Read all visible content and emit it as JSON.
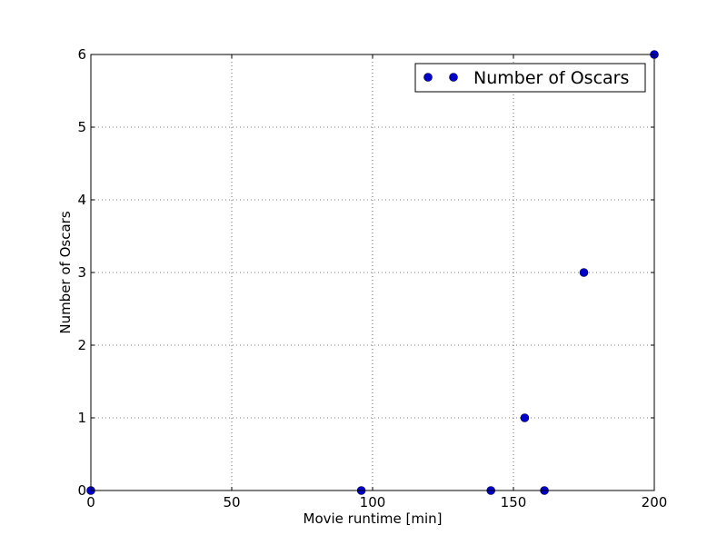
{
  "chart_data": {
    "type": "scatter",
    "title": "",
    "xlabel": "Movie runtime [min]",
    "ylabel": "Number of Oscars",
    "xlim": [
      0,
      200
    ],
    "ylim": [
      0,
      6
    ],
    "x_ticks": [
      "0",
      "50",
      "100",
      "150",
      "200"
    ],
    "y_ticks": [
      "0",
      "1",
      "2",
      "3",
      "4",
      "5",
      "6"
    ],
    "grid": true,
    "legend_position": "top-right",
    "series": [
      {
        "name": "Number of Oscars",
        "color": "#0000cc",
        "points": [
          {
            "x": 0,
            "y": 0
          },
          {
            "x": 96,
            "y": 0
          },
          {
            "x": 142,
            "y": 0
          },
          {
            "x": 154,
            "y": 1
          },
          {
            "x": 161,
            "y": 0
          },
          {
            "x": 175,
            "y": 3
          },
          {
            "x": 200,
            "y": 6
          }
        ]
      }
    ]
  }
}
